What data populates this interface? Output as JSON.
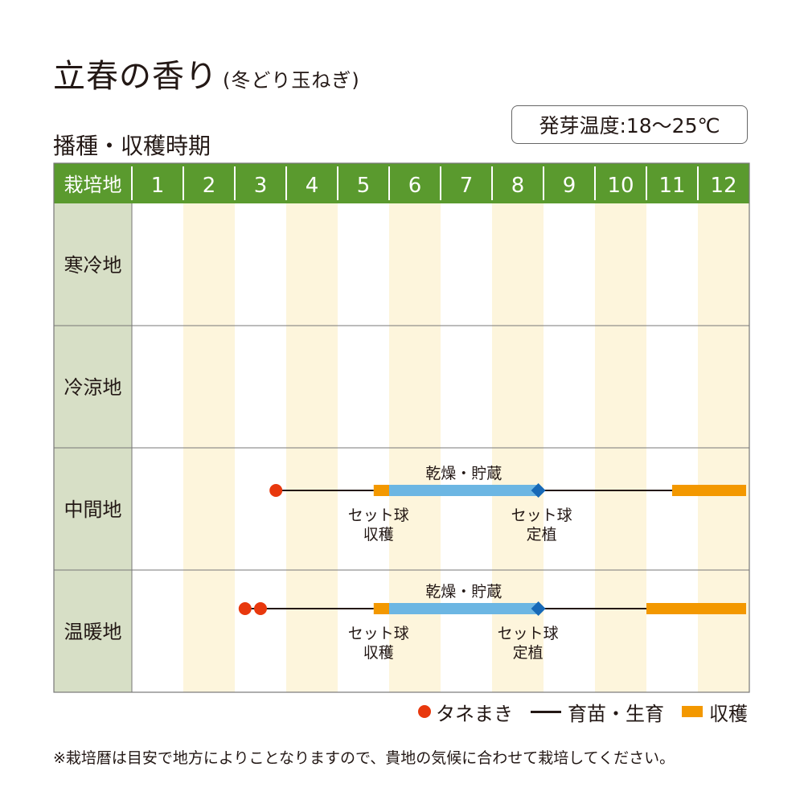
{
  "title": "立春の香り",
  "subtitle": "(冬どり玉ねぎ)",
  "section_title": "播種・収穫時期",
  "temperature_label": "発芽温度:18〜25℃",
  "legend": {
    "sowing": "タネまき",
    "growing": "育苗・生育",
    "harvest": "収穫"
  },
  "note": "※栽培暦は目安で地方によりことなりますので、貴地の気候に合わせて栽培してください。",
  "colors": {
    "header_green": "#5a9a2e",
    "region_cell": "#d7dfc6",
    "alt_column": "#fdf5dc",
    "sowing": "#e8380d",
    "harvest": "#f39800",
    "storage": "#6cb6e3",
    "transplant": "#1769b7",
    "line": "#231815"
  },
  "chart_data": {
    "type": "table",
    "header_label": "栽培地",
    "months": [
      "1",
      "2",
      "3",
      "4",
      "5",
      "6",
      "7",
      "8",
      "9",
      "10",
      "11",
      "12"
    ],
    "rows": [
      {
        "region": "寒冷地"
      },
      {
        "region": "冷涼地"
      },
      {
        "region": "中間地",
        "sowing": [
          3.8
        ],
        "line_segments": [
          [
            3.8,
            5.7
          ],
          [
            8.5,
            11.5
          ]
        ],
        "harvest_bars": [
          [
            5.7,
            6.0
          ],
          [
            11.5,
            13.0
          ]
        ],
        "storage_bar": [
          6.0,
          8.9
        ],
        "transplant": 8.9,
        "storage_label": "乾燥・貯蔵",
        "set_harvest_label": [
          "セット球",
          "収穫"
        ],
        "set_planting_label": [
          "セット球",
          "定植"
        ]
      },
      {
        "region": "温暖地",
        "sowing": [
          3.2,
          3.5
        ],
        "line_segments": [
          [
            3.2,
            5.7
          ],
          [
            8.6,
            11.0
          ]
        ],
        "harvest_bars": [
          [
            5.7,
            6.0
          ],
          [
            11.0,
            13.0
          ]
        ],
        "storage_bar": [
          6.0,
          8.9
        ],
        "transplant": 8.9,
        "storage_label": "乾燥・貯蔵",
        "set_harvest_label": [
          "セット球",
          "収穫"
        ],
        "set_planting_label": [
          "セット球",
          "定植"
        ]
      }
    ]
  }
}
